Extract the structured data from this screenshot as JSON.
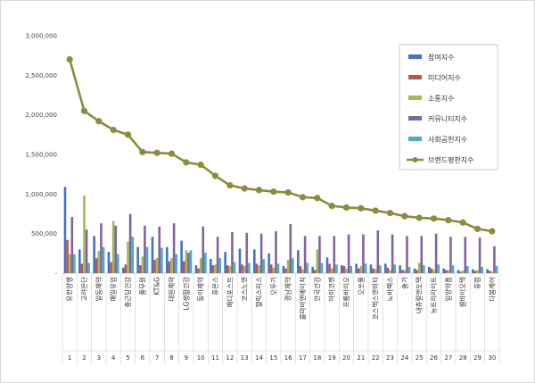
{
  "chart_data": {
    "type": "bar",
    "ylim": [
      0,
      3000000
    ],
    "y_ticks": [
      0,
      500000,
      1000000,
      1500000,
      2000000,
      2500000,
      3000000
    ],
    "y_tick_labels": [
      "-",
      "500,000",
      "1,000,000",
      "1,500,000",
      "2,000,000",
      "2,500,000",
      "3,000,000"
    ],
    "grid": false,
    "legend_position": "top-right",
    "categories": [
      "유한양행",
      "고려은단",
      "일동제약",
      "매일유업",
      "종근당건강",
      "풀무원",
      "KT&G",
      "대원제약",
      "LG생활건강",
      "동아제약",
      "휴온스",
      "메디포스트",
      "코스노엔",
      "헬릭스미스",
      "오뚜기",
      "경남제약",
      "콜마비앤에이치",
      "안국건강",
      "아미코젠",
      "프롬바이오",
      "오쏘몰",
      "코스맥스엔비티",
      "노바렉스",
      "솔가",
      "내츄럴엔도텍",
      "뉴트리라이트",
      "일양약품",
      "셀바이오텍",
      "휴럼",
      "다봄케어"
    ],
    "numbers": [
      "1",
      "2",
      "3",
      "4",
      "5",
      "6",
      "7",
      "8",
      "9",
      "10",
      "11",
      "12",
      "13",
      "14",
      "15",
      "16",
      "17",
      "18",
      "19",
      "20",
      "21",
      "22",
      "23",
      "24",
      "25",
      "26",
      "27",
      "28",
      "29",
      "30"
    ],
    "series": [
      {
        "name": "참여지수",
        "kind": "bar",
        "color": "#4472c4",
        "values": [
          1090000,
          300000,
          470000,
          270000,
          70000,
          330000,
          460000,
          330000,
          410000,
          100000,
          180000,
          270000,
          310000,
          300000,
          250000,
          90000,
          290000,
          80000,
          200000,
          100000,
          120000,
          110000,
          120000,
          100000,
          60000,
          80000,
          60000,
          40000,
          50000,
          50000
        ]
      },
      {
        "name": "미디어지수",
        "kind": "bar",
        "color": "#c0504d",
        "values": [
          420000,
          120000,
          190000,
          140000,
          110000,
          100000,
          170000,
          150000,
          150000,
          60000,
          100000,
          100000,
          110000,
          120000,
          110000,
          60000,
          90000,
          40000,
          120000,
          90000,
          60000,
          60000,
          70000,
          40000,
          40000,
          60000,
          40000,
          20000,
          30000,
          30000
        ]
      },
      {
        "name": "소통지수",
        "kind": "bar",
        "color": "#9bbb59",
        "values": [
          240000,
          980000,
          280000,
          660000,
          400000,
          210000,
          190000,
          190000,
          290000,
          190000,
          110000,
          90000,
          90000,
          100000,
          70000,
          170000,
          50000,
          300000,
          60000,
          60000,
          90000,
          50000,
          40000,
          40000,
          130000,
          40000,
          40000,
          30000,
          40000,
          20000
        ]
      },
      {
        "name": "커뮤니티지수",
        "kind": "bar",
        "color": "#8064a2",
        "values": [
          710000,
          550000,
          630000,
          600000,
          750000,
          600000,
          590000,
          630000,
          260000,
          590000,
          460000,
          520000,
          510000,
          500000,
          530000,
          620000,
          470000,
          470000,
          470000,
          490000,
          490000,
          540000,
          490000,
          470000,
          470000,
          500000,
          460000,
          460000,
          450000,
          340000
        ]
      },
      {
        "name": "사회공헌지수",
        "kind": "bar",
        "color": "#4bacc6",
        "values": [
          240000,
          130000,
          330000,
          240000,
          460000,
          330000,
          320000,
          240000,
          290000,
          260000,
          190000,
          140000,
          130000,
          180000,
          120000,
          190000,
          130000,
          130000,
          110000,
          90000,
          120000,
          100000,
          110000,
          80000,
          100000,
          110000,
          100000,
          90000,
          80000,
          90000
        ]
      },
      {
        "name": "브랜드평판지수",
        "kind": "line",
        "color": "#8c8c3c",
        "values": [
          2700000,
          2050000,
          1920000,
          1810000,
          1750000,
          1530000,
          1520000,
          1510000,
          1400000,
          1370000,
          1230000,
          1110000,
          1070000,
          1050000,
          1030000,
          1020000,
          960000,
          950000,
          850000,
          830000,
          820000,
          790000,
          760000,
          720000,
          700000,
          690000,
          670000,
          640000,
          560000,
          530000
        ]
      }
    ]
  }
}
